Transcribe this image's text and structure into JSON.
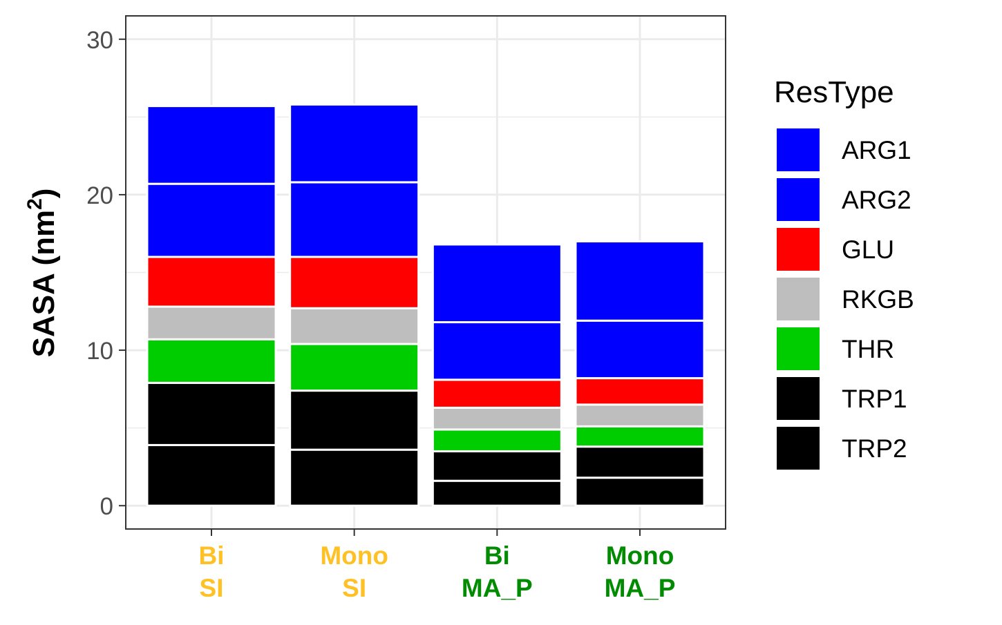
{
  "chart_data": {
    "type": "bar",
    "stacked": true,
    "title": "",
    "xlabel": "",
    "ylabel": "SASA (nm",
    "ylabel_superscript": "2",
    "ylabel_suffix": ")",
    "ylim": [
      -1.5,
      31.5
    ],
    "yticks": [
      0,
      10,
      20,
      30
    ],
    "yticklabels": [
      "0",
      "10",
      "20",
      "30"
    ],
    "grid": true,
    "categories": [
      {
        "line1": "Bi",
        "line2": "SI",
        "color": "#FFC125"
      },
      {
        "line1": "Mono",
        "line2": "SI",
        "color": "#FFC125"
      },
      {
        "line1": "Bi",
        "line2": "MA_P",
        "color": "#008B00"
      },
      {
        "line1": "Mono",
        "line2": "MA_P",
        "color": "#008B00"
      }
    ],
    "series": [
      {
        "name": "TRP2",
        "color": "#000000",
        "values": [
          3.9,
          3.6,
          1.6,
          1.8
        ]
      },
      {
        "name": "TRP1",
        "color": "#000000",
        "values": [
          4.0,
          3.8,
          1.9,
          2.0
        ]
      },
      {
        "name": "THR",
        "color": "#00CD00",
        "values": [
          2.8,
          3.0,
          1.4,
          1.3
        ]
      },
      {
        "name": "RKGB",
        "color": "#BEBEBE",
        "values": [
          2.1,
          2.3,
          1.4,
          1.4
        ]
      },
      {
        "name": "GLU",
        "color": "#FF0000",
        "values": [
          3.2,
          3.3,
          1.8,
          1.7
        ]
      },
      {
        "name": "ARG2",
        "color": "#0000FF",
        "values": [
          4.7,
          4.8,
          3.7,
          3.7
        ]
      },
      {
        "name": "ARG1",
        "color": "#0000FF",
        "values": [
          5.0,
          5.0,
          5.0,
          5.1
        ]
      }
    ],
    "legend": {
      "title": "ResType",
      "position": "right",
      "items": [
        {
          "name": "ARG1",
          "color": "#0000FF"
        },
        {
          "name": "ARG2",
          "color": "#0000FF"
        },
        {
          "name": "GLU",
          "color": "#FF0000"
        },
        {
          "name": "RKGB",
          "color": "#BEBEBE"
        },
        {
          "name": "THR",
          "color": "#00CD00"
        },
        {
          "name": "TRP1",
          "color": "#000000"
        },
        {
          "name": "TRP2",
          "color": "#000000"
        }
      ]
    }
  }
}
